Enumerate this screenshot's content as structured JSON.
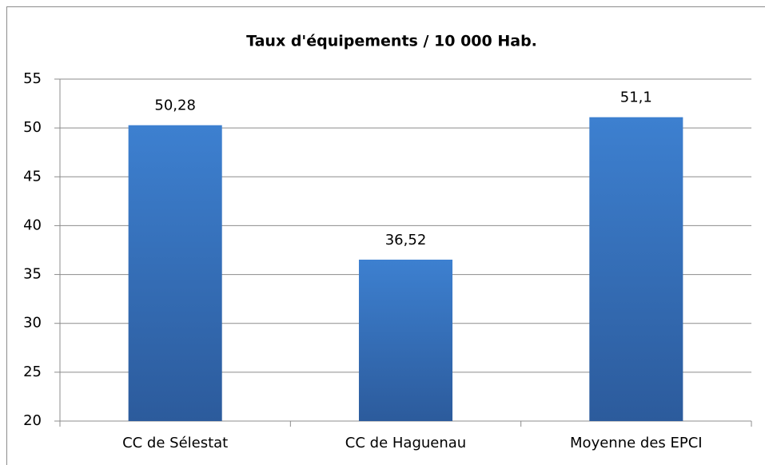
{
  "chart_data": {
    "type": "bar",
    "title": "Taux d'équipements / 10 000 Hab.",
    "categories": [
      "CC de Sélestat",
      "CC de Haguenau",
      "Moyenne des EPCI"
    ],
    "values": [
      50.28,
      36.52,
      51.1
    ],
    "value_labels": [
      "50,28",
      "36,52",
      "51,1"
    ],
    "color": "#3a75c4",
    "ylim": [
      20,
      55
    ],
    "yticks": [
      20,
      25,
      30,
      35,
      40,
      45,
      50,
      55
    ],
    "grid": true
  }
}
